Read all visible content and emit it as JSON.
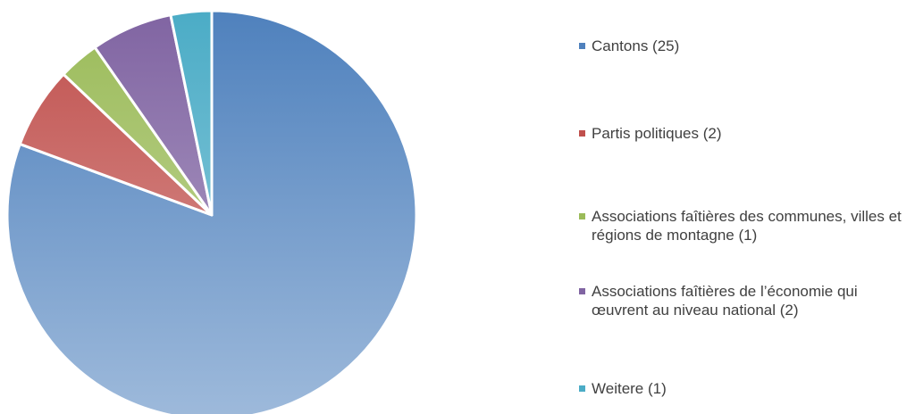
{
  "chart_data": {
    "type": "pie",
    "categories": [
      "Cantons (25)",
      "Partis politiques (2)",
      "Associations faîtières des communes, villes et régions de montagne (1)",
      "Associations faîtières de l’économie qui œuvrent au niveau national (2)",
      "Weitere (1)"
    ],
    "values": [
      25,
      2,
      1,
      2,
      1
    ],
    "colors": [
      "#4f81bd",
      "#c0504d",
      "#9bbb59",
      "#8064a2",
      "#4bacc6"
    ],
    "legend": "right"
  }
}
